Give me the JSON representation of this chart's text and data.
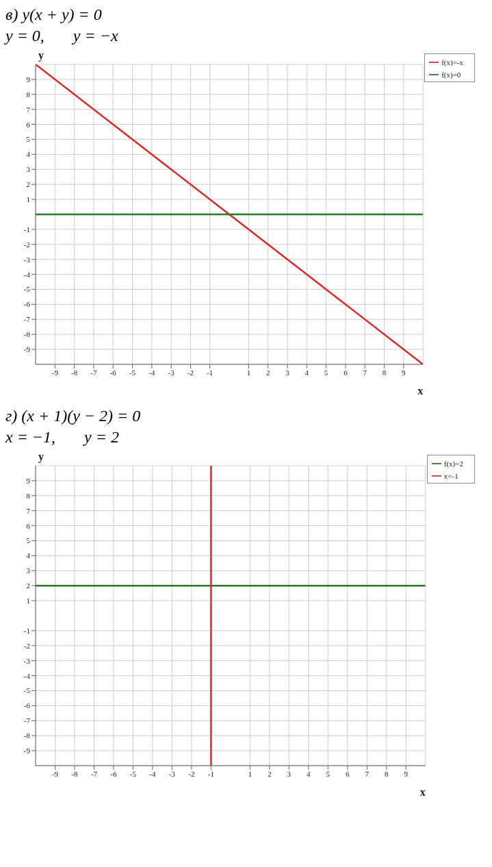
{
  "chart_data": [
    {
      "type": "line",
      "title": "в) y(x + y) = 0",
      "subtitle": "y = 0,       y = −x",
      "xlabel": "x",
      "ylabel": "y",
      "xlim": [
        -10,
        10
      ],
      "ylim": [
        -10,
        10
      ],
      "xticks": [
        -9,
        -8,
        -7,
        -6,
        -5,
        -4,
        -3,
        -2,
        -1,
        1,
        2,
        3,
        4,
        5,
        6,
        7,
        8,
        9
      ],
      "yticks": [
        -9,
        -8,
        -7,
        -6,
        -5,
        -4,
        -3,
        -2,
        -1,
        1,
        2,
        3,
        4,
        5,
        6,
        7,
        8,
        9
      ],
      "grid": true,
      "legend": "top right",
      "marker": "none",
      "line_style": "solid",
      "series": [
        {
          "name": "f(x)=-x",
          "color": "#d42a2a",
          "x": [
            -10,
            10
          ],
          "values": [
            10,
            -10
          ]
        },
        {
          "name": "f(x)=0",
          "color": "#237a23",
          "x": [
            -10,
            10
          ],
          "values": [
            0,
            0
          ]
        }
      ]
    },
    {
      "type": "line",
      "title": "г) (x + 1)(y − 2) = 0",
      "subtitle": "x = −1,       y = 2",
      "xlabel": "x",
      "ylabel": "y",
      "xlim": [
        -10,
        10
      ],
      "ylim": [
        -10,
        10
      ],
      "xticks": [
        -9,
        -8,
        -7,
        -6,
        -5,
        -4,
        -3,
        -2,
        -1,
        1,
        2,
        3,
        4,
        5,
        6,
        7,
        8,
        9
      ],
      "yticks": [
        -9,
        -8,
        -7,
        -6,
        -5,
        -4,
        -3,
        -2,
        -1,
        1,
        2,
        3,
        4,
        5,
        6,
        7,
        8,
        9
      ],
      "grid": true,
      "legend": "top right",
      "marker": "none",
      "line_style": "solid",
      "series": [
        {
          "name": "f(x)=2",
          "color": "#237a23",
          "x": [
            -10,
            10
          ],
          "values": [
            2,
            2
          ]
        },
        {
          "name": "x=-1",
          "color": "#d42a2a",
          "x": [
            -1,
            -1
          ],
          "values": [
            -10,
            10
          ]
        }
      ]
    }
  ]
}
